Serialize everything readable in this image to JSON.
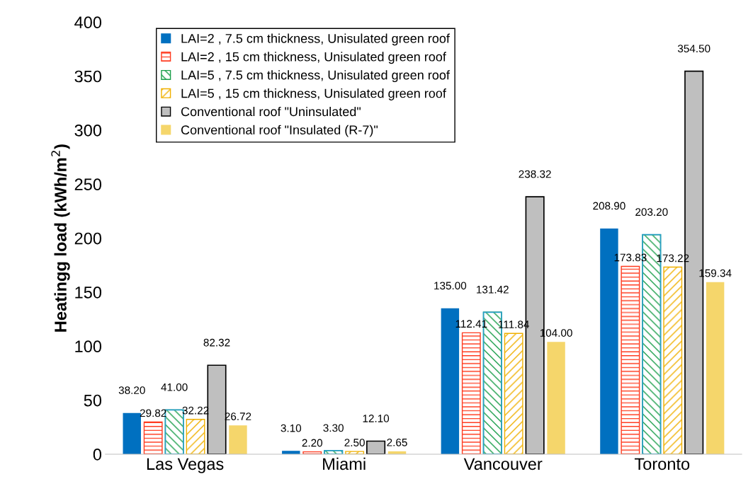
{
  "chart_data": {
    "type": "bar",
    "ylabel": "Heatingg load (kWh/m$^{2}$)",
    "categories": [
      "Las Vegas",
      "Miami",
      "Vancouver",
      "Toronto"
    ],
    "series": [
      {
        "name": "LAI=2 , 7.5 cm thickness, Unisulated green roof",
        "color": "#0070c0",
        "values": [
          38.2,
          3.1,
          135.0,
          208.9
        ],
        "value_labels": [
          "38.20",
          "3.10",
          "135.00",
          "208.90"
        ]
      },
      {
        "name": "LAI=2 , 15 cm thickness, Unisulated green roof",
        "color": "#ff3b1f",
        "values": [
          29.82,
          2.2,
          112.41,
          173.83
        ],
        "value_labels": [
          "29.82",
          "2.20",
          "112.41",
          "173.83"
        ]
      },
      {
        "name": "LAI=5 , 7.5 cm thickness, Unisulated green roof",
        "color": "#1a9e4a",
        "values": [
          41.0,
          3.3,
          131.42,
          203.2
        ],
        "value_labels": [
          "41.00",
          "3.30",
          "131.42",
          "203.20"
        ]
      },
      {
        "name": "LAI=5 , 15 cm thickness, Unisulated green roof",
        "color": "#f0b000",
        "values": [
          32.22,
          2.5,
          111.84,
          173.22
        ],
        "value_labels": [
          "32.22",
          "2.50",
          "111.84",
          "173.22"
        ]
      },
      {
        "name": "Conventional roof \"Uninsulated\"",
        "color": "#bfbfbf",
        "values": [
          82.32,
          12.1,
          238.32,
          354.5
        ],
        "value_labels": [
          "82.32",
          "12.10",
          "238.32",
          "354.50"
        ]
      },
      {
        "name": "Conventional roof \"Insulated (R-7)\"",
        "color": "#f5d66b",
        "values": [
          26.72,
          2.65,
          104.0,
          159.34
        ],
        "value_labels": [
          "26.72",
          "2.65",
          "104.00",
          "159.34"
        ]
      }
    ],
    "ylim": [
      0,
      400
    ],
    "yticks": [
      0,
      50,
      100,
      150,
      200,
      250,
      300,
      350,
      400
    ],
    "grid": false,
    "legend": "top left"
  }
}
